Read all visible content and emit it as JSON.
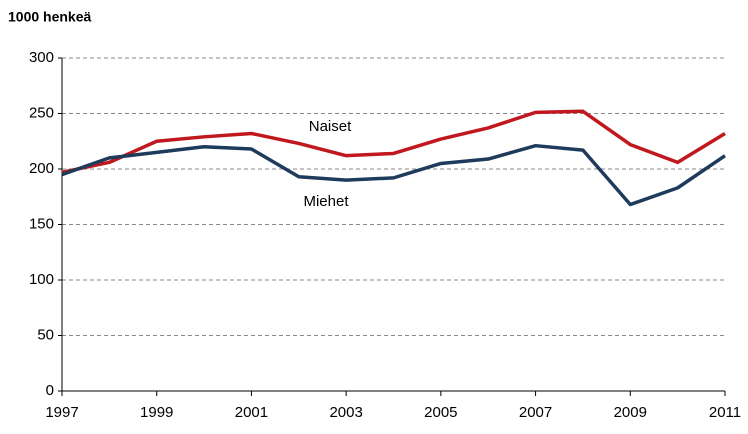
{
  "chart_data": {
    "type": "line",
    "y_label": "1000 henkeä",
    "x": [
      1997,
      1998,
      1999,
      2000,
      2001,
      2002,
      2003,
      2004,
      2005,
      2006,
      2007,
      2008,
      2009,
      2010,
      2011
    ],
    "series": [
      {
        "name": "Naiset",
        "color": "#c0181e",
        "values": [
          197,
          206,
          225,
          229,
          232,
          223,
          212,
          214,
          227,
          237,
          251,
          252,
          222,
          206,
          232
        ]
      },
      {
        "name": "Miehet",
        "color": "#1f3b5c",
        "values": [
          195,
          210,
          215,
          220,
          218,
          193,
          190,
          192,
          205,
          209,
          221,
          217,
          168,
          183,
          212
        ]
      }
    ],
    "xlim": [
      1997,
      2011
    ],
    "xticks": [
      1997,
      1999,
      2001,
      2003,
      2005,
      2007,
      2009,
      2011
    ],
    "ylim": [
      0,
      300
    ],
    "yticks": [
      0,
      50,
      100,
      150,
      200,
      250,
      300
    ],
    "grid": true
  }
}
